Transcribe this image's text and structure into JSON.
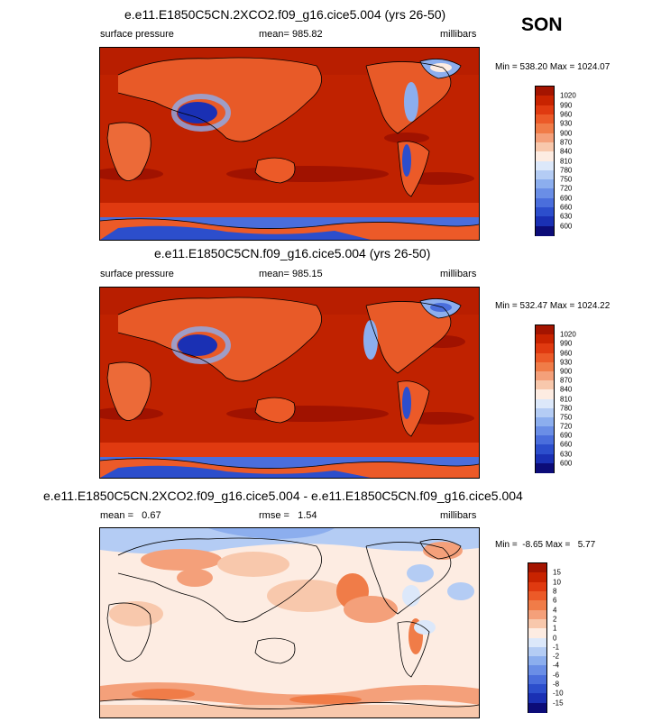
{
  "season": "SON",
  "panels": [
    {
      "title": "e.e11.E1850C5CN.2XCO2.f09_g16.cice5.004 (yrs 26-50)",
      "left_label": "surface pressure",
      "center_label": "mean= 985.82",
      "right_label": "millibars",
      "minmax": "Min = 538.20 Max = 1024.07",
      "levels": [
        "1020",
        "990",
        "960",
        "930",
        "900",
        "870",
        "840",
        "810",
        "780",
        "750",
        "720",
        "690",
        "660",
        "630",
        "600"
      ],
      "colors": [
        "#a41400",
        "#c82300",
        "#e03a10",
        "#ec5a28",
        "#f07c48",
        "#f4a07a",
        "#f8c8ac",
        "#fdece2",
        "#dce8fa",
        "#b4ccf4",
        "#8caeee",
        "#6a8ee6",
        "#4a6edc",
        "#2c4ecc",
        "#1a30b4",
        "#0c0c78"
      ]
    },
    {
      "title": "e.e11.E1850C5CN.f09_g16.cice5.004 (yrs 26-50)",
      "left_label": "surface pressure",
      "center_label": "mean= 985.15",
      "right_label": "millibars",
      "minmax": "Min = 532.47 Max = 1024.22",
      "levels": [
        "1020",
        "990",
        "960",
        "930",
        "900",
        "870",
        "840",
        "810",
        "780",
        "750",
        "720",
        "690",
        "660",
        "630",
        "600"
      ],
      "colors": [
        "#a41400",
        "#c82300",
        "#e03a10",
        "#ec5a28",
        "#f07c48",
        "#f4a07a",
        "#f8c8ac",
        "#fdece2",
        "#dce8fa",
        "#b4ccf4",
        "#8caeee",
        "#6a8ee6",
        "#4a6edc",
        "#2c4ecc",
        "#1a30b4",
        "#0c0c78"
      ]
    },
    {
      "title": "e.e11.E1850C5CN.2XCO2.f09_g16.cice5.004 - e.e11.E1850C5CN.f09_g16.cice5.004",
      "left_label": "mean =   0.67",
      "center_label": "rmse =   1.54",
      "right_label": "millibars",
      "minmax": "Min =  -8.65 Max =   5.77",
      "levels": [
        "15",
        "10",
        "8",
        "6",
        "4",
        "2",
        "1",
        "0",
        "-1",
        "-2",
        "-4",
        "-6",
        "-8",
        "-10",
        "-15"
      ],
      "colors": [
        "#a41400",
        "#c82300",
        "#e03a10",
        "#ec5a28",
        "#f07c48",
        "#f4a07a",
        "#f8c8ac",
        "#fdece2",
        "#dce8fa",
        "#b4ccf4",
        "#8caeee",
        "#6a8ee6",
        "#4a6edc",
        "#2c4ecc",
        "#1a30b4",
        "#0c0c78"
      ]
    }
  ]
}
